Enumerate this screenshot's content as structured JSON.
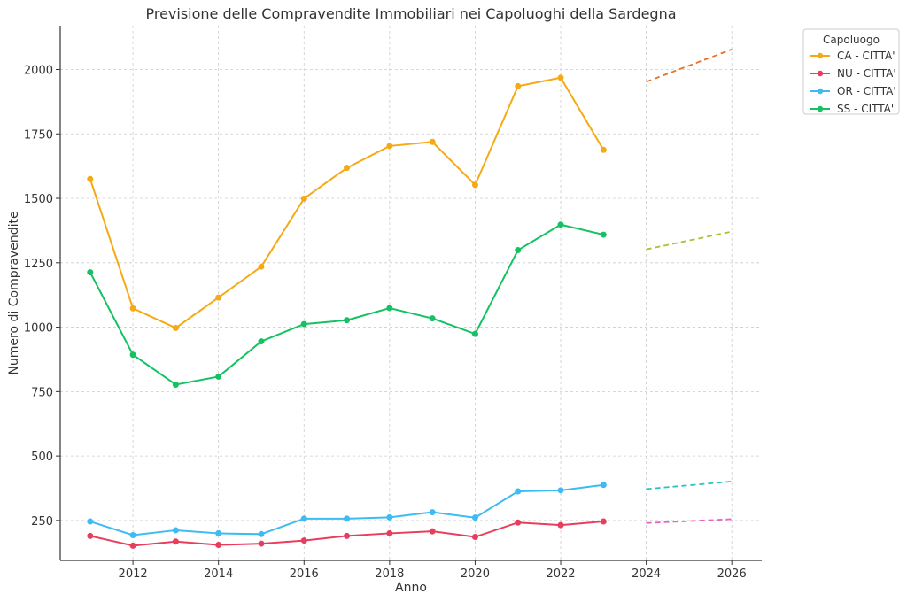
{
  "chart_data": {
    "type": "line",
    "title": "Previsione delle Compravendite Immobiliari nei Capoluoghi della Sardegna",
    "xlabel": "Anno",
    "ylabel": "Numero di Compravendite",
    "xlim": [
      2010.3,
      2026.7
    ],
    "ylim": [
      95,
      2170
    ],
    "xticks": [
      2012,
      2014,
      2016,
      2018,
      2020,
      2022,
      2024,
      2026
    ],
    "yticks": [
      250,
      500,
      750,
      1000,
      1250,
      1500,
      1750,
      2000
    ],
    "grid": true,
    "legend": {
      "title": "Capoluogo",
      "placement": "outside-top-right"
    },
    "x": [
      2011,
      2012,
      2013,
      2014,
      2015,
      2016,
      2017,
      2018,
      2019,
      2020,
      2021,
      2022,
      2023
    ],
    "series": [
      {
        "name": "CA - CITTA'",
        "color": "#f5a915",
        "values": [
          1575,
          1073,
          997,
          1115,
          1235,
          1499,
          1618,
          1703,
          1719,
          1552,
          1935,
          1968,
          1688
        ],
        "forecast": {
          "x": [
            2024,
            2026
          ],
          "values": [
            1952,
            2078
          ],
          "color": "#e8722c"
        }
      },
      {
        "name": "NU - CITTA'",
        "color": "#e83e5d",
        "values": [
          190,
          152,
          168,
          155,
          160,
          172,
          190,
          200,
          208,
          186,
          242,
          232,
          246
        ],
        "forecast": {
          "x": [
            2024,
            2026
          ],
          "values": [
            240,
            255
          ],
          "color": "#ee5fc0"
        }
      },
      {
        "name": "OR - CITTA'",
        "color": "#3dbbf2",
        "values": [
          246,
          193,
          212,
          200,
          197,
          257,
          257,
          262,
          282,
          261,
          363,
          367,
          388
        ],
        "forecast": {
          "x": [
            2024,
            2026
          ],
          "values": [
            372,
            401
          ],
          "color": "#22c4c4"
        }
      },
      {
        "name": "SS - CITTA'",
        "color": "#14c263",
        "values": [
          1213,
          893,
          777,
          808,
          945,
          1012,
          1027,
          1074,
          1034,
          974,
          1299,
          1398,
          1359
        ],
        "forecast": {
          "x": [
            2024,
            2026
          ],
          "values": [
            1302,
            1371
          ],
          "color": "#a4c431"
        }
      }
    ]
  }
}
